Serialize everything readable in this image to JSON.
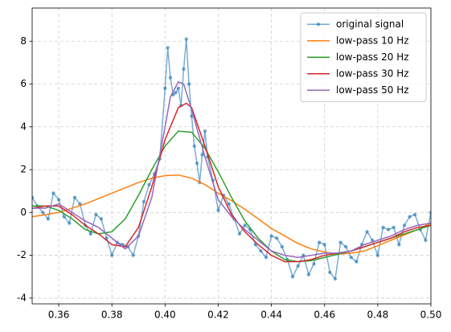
{
  "chart_data": {
    "type": "line",
    "xlim": [
      0.35,
      0.5
    ],
    "ylim": [
      -4.27,
      9.55
    ],
    "xticks": [
      0.36,
      0.38,
      {
        "value": 0.4,
        "label": "0.40"
      },
      0.42,
      0.44,
      0.46,
      0.48,
      {
        "value": 0.5,
        "label": "0.50"
      }
    ],
    "yticks": [
      -4,
      -2,
      0,
      2,
      4,
      6,
      8
    ],
    "grid": true,
    "legend": "upper right",
    "series": [
      {
        "name": "original signal",
        "color": "#1f77b4",
        "marker": true,
        "x": [
          0.35,
          0.352,
          0.354,
          0.356,
          0.358,
          0.36,
          0.362,
          0.364,
          0.366,
          0.368,
          0.37,
          0.372,
          0.374,
          0.376,
          0.378,
          0.38,
          0.382,
          0.384,
          0.386,
          0.388,
          0.39,
          0.392,
          0.394,
          0.396,
          0.398,
          0.4,
          0.401,
          0.402,
          0.403,
          0.404,
          0.405,
          0.406,
          0.407,
          0.408,
          0.409,
          0.41,
          0.411,
          0.412,
          0.413,
          0.414,
          0.415,
          0.416,
          0.418,
          0.42,
          0.422,
          0.424,
          0.426,
          0.428,
          0.43,
          0.432,
          0.434,
          0.436,
          0.438,
          0.44,
          0.442,
          0.444,
          0.446,
          0.448,
          0.45,
          0.452,
          0.454,
          0.456,
          0.458,
          0.46,
          0.462,
          0.464,
          0.466,
          0.468,
          0.47,
          0.472,
          0.474,
          0.476,
          0.478,
          0.48,
          0.482,
          0.484,
          0.486,
          0.488,
          0.49,
          0.492,
          0.494,
          0.496,
          0.498,
          0.5
        ],
        "values": [
          0.7,
          0.3,
          0.0,
          -0.3,
          0.9,
          0.6,
          -0.2,
          -0.5,
          0.7,
          0.4,
          -0.6,
          -1.0,
          -0.1,
          -0.3,
          -1.2,
          -2.0,
          -1.4,
          -1.5,
          -1.6,
          -2.0,
          -1.1,
          0.5,
          1.3,
          1.8,
          2.5,
          5.8,
          7.7,
          6.3,
          5.5,
          5.6,
          5.8,
          5.0,
          6.7,
          8.1,
          6.0,
          4.5,
          3.1,
          2.3,
          1.4,
          2.7,
          3.8,
          2.6,
          1.5,
          0.1,
          0.8,
          0.4,
          -0.3,
          -1.0,
          -0.6,
          -0.8,
          -1.5,
          -1.8,
          -2.1,
          -1.1,
          -1.2,
          -1.6,
          -2.2,
          -3.0,
          -2.5,
          -2.0,
          -2.9,
          -2.4,
          -1.4,
          -1.5,
          -2.8,
          -3.1,
          -1.4,
          -1.6,
          -2.1,
          -2.3,
          -1.5,
          -0.9,
          -1.3,
          -2.0,
          -0.7,
          -0.8,
          -0.7,
          -1.5,
          -0.6,
          -0.2,
          -0.1,
          -0.8,
          -1.3,
          0.0
        ]
      },
      {
        "name": "low-pass 10 Hz",
        "color": "#ff7f0e",
        "x": [
          0.35,
          0.355,
          0.36,
          0.365,
          0.37,
          0.375,
          0.38,
          0.385,
          0.39,
          0.395,
          0.4,
          0.405,
          0.41,
          0.415,
          0.42,
          0.425,
          0.43,
          0.435,
          0.44,
          0.445,
          0.45,
          0.455,
          0.46,
          0.465,
          0.47,
          0.475,
          0.48,
          0.485,
          0.49,
          0.495,
          0.5
        ],
        "values": [
          -0.2,
          -0.1,
          0.0,
          0.2,
          0.4,
          0.65,
          0.9,
          1.15,
          1.4,
          1.6,
          1.72,
          1.75,
          1.6,
          1.3,
          0.9,
          0.55,
          0.15,
          -0.3,
          -0.75,
          -1.1,
          -1.45,
          -1.7,
          -1.85,
          -1.95,
          -1.9,
          -1.8,
          -1.55,
          -1.3,
          -1.05,
          -0.8,
          -0.5
        ]
      },
      {
        "name": "low-pass 20 Hz",
        "color": "#2ca02c",
        "x": [
          0.35,
          0.355,
          0.36,
          0.365,
          0.37,
          0.375,
          0.38,
          0.385,
          0.39,
          0.395,
          0.4,
          0.405,
          0.41,
          0.415,
          0.42,
          0.425,
          0.43,
          0.435,
          0.44,
          0.445,
          0.45,
          0.455,
          0.46,
          0.465,
          0.47,
          0.475,
          0.48,
          0.485,
          0.49,
          0.495,
          0.5
        ],
        "values": [
          0.3,
          0.3,
          0.1,
          -0.3,
          -0.8,
          -1.0,
          -0.9,
          -0.3,
          0.8,
          2.0,
          3.1,
          3.8,
          3.75,
          3.0,
          1.9,
          0.7,
          -0.4,
          -1.2,
          -1.8,
          -2.2,
          -2.3,
          -2.25,
          -2.1,
          -1.95,
          -1.8,
          -1.6,
          -1.4,
          -1.2,
          -1.0,
          -0.8,
          -0.6
        ]
      },
      {
        "name": "low-pass 30 Hz",
        "color": "#d62728",
        "x": [
          0.35,
          0.355,
          0.36,
          0.365,
          0.37,
          0.375,
          0.38,
          0.385,
          0.39,
          0.395,
          0.4,
          0.405,
          0.408,
          0.41,
          0.415,
          0.42,
          0.425,
          0.43,
          0.435,
          0.44,
          0.445,
          0.45,
          0.455,
          0.46,
          0.465,
          0.47,
          0.475,
          0.48,
          0.485,
          0.49,
          0.495,
          0.5
        ],
        "values": [
          0.2,
          0.3,
          0.3,
          -0.1,
          -0.6,
          -1.0,
          -1.5,
          -1.6,
          -0.7,
          1.2,
          3.4,
          4.9,
          5.1,
          4.9,
          3.1,
          1.2,
          -0.1,
          -0.9,
          -1.5,
          -2.0,
          -2.3,
          -2.3,
          -2.2,
          -2.0,
          -1.9,
          -1.8,
          -1.6,
          -1.4,
          -1.2,
          -0.9,
          -0.7,
          -0.6
        ]
      },
      {
        "name": "low-pass 50 Hz",
        "color": "#9467bd",
        "x": [
          0.35,
          0.355,
          0.36,
          0.365,
          0.37,
          0.375,
          0.38,
          0.385,
          0.39,
          0.395,
          0.4,
          0.402,
          0.405,
          0.407,
          0.41,
          0.415,
          0.42,
          0.425,
          0.43,
          0.435,
          0.44,
          0.445,
          0.45,
          0.455,
          0.46,
          0.465,
          0.47,
          0.475,
          0.48,
          0.485,
          0.49,
          0.495,
          0.5
        ],
        "values": [
          0.2,
          0.2,
          0.4,
          0.0,
          -0.4,
          -0.7,
          -1.2,
          -1.7,
          -1.1,
          0.7,
          4.0,
          5.4,
          6.1,
          6.0,
          4.8,
          2.6,
          0.6,
          -0.2,
          -0.8,
          -1.3,
          -1.8,
          -2.0,
          -2.1,
          -2.0,
          -1.9,
          -1.9,
          -1.8,
          -1.5,
          -1.3,
          -1.1,
          -0.8,
          -0.6,
          -0.5
        ]
      }
    ]
  }
}
